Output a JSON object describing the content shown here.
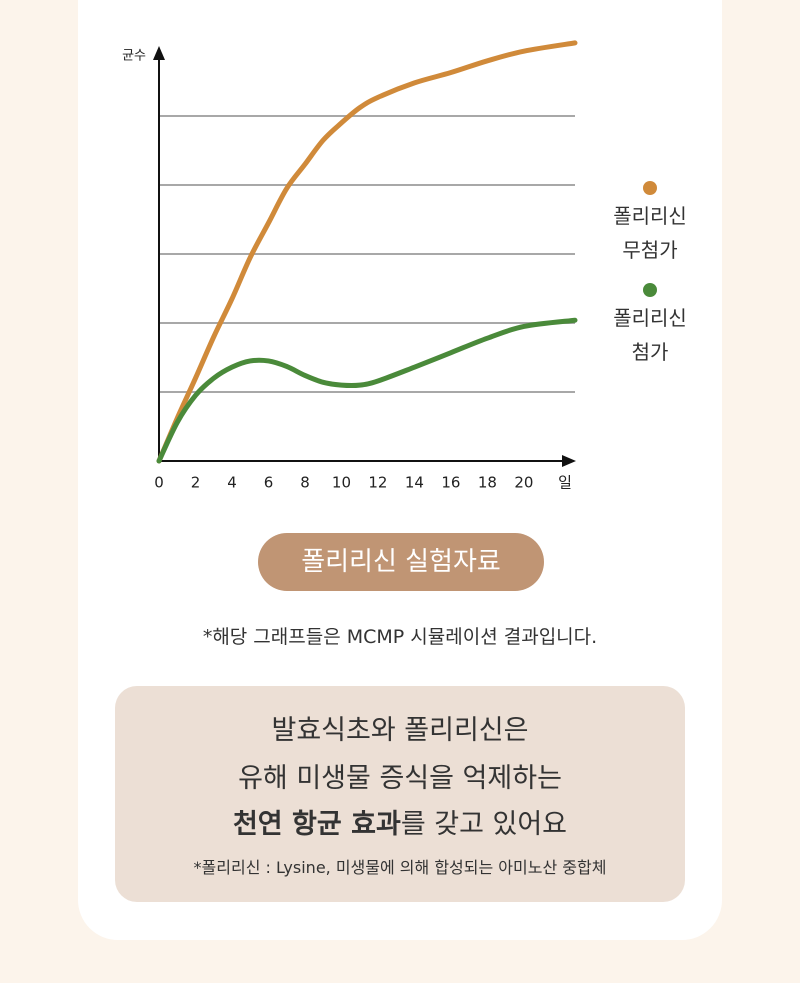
{
  "chart_data": {
    "type": "line",
    "ylabel": "균수",
    "xlabel": "일",
    "x": [
      0,
      1,
      2,
      3,
      4,
      5,
      6,
      7,
      8,
      9,
      10,
      11,
      12,
      14,
      16,
      18,
      20,
      22.8
    ],
    "xlim": [
      0,
      22.8
    ],
    "xticks": [
      0,
      2,
      4,
      6,
      8,
      10,
      12,
      14,
      16,
      18,
      20
    ],
    "ylim": [
      0,
      6.3
    ],
    "gridlines": [
      1,
      2,
      3,
      4,
      5
    ],
    "series": [
      {
        "name": "폴리리신\n무첨가",
        "color": "#d08a3a",
        "values": [
          0,
          0.62,
          1.2,
          1.8,
          2.35,
          2.95,
          3.45,
          3.95,
          4.3,
          4.65,
          4.9,
          5.12,
          5.27,
          5.48,
          5.63,
          5.8,
          5.94,
          6.06
        ]
      },
      {
        "name": "폴리리신\n첨가",
        "color": "#4a8a3a",
        "values": [
          0,
          0.56,
          0.95,
          1.2,
          1.36,
          1.45,
          1.45,
          1.37,
          1.24,
          1.14,
          1.1,
          1.1,
          1.16,
          1.36,
          1.57,
          1.78,
          1.95,
          2.04
        ]
      }
    ]
  },
  "button": "폴리리신 실험자료",
  "note": "*해당 그래프들은 MCMP 시뮬레이션 결과입니다.",
  "box": {
    "line1": "발효식초와 폴리리신은",
    "line2": "유해 미생물 증식을 억제하는",
    "line3_bold": "천연 항균 효과",
    "line3_rest": "를 갖고 있어요",
    "footnote": "*폴리리신 : Lysine, 미생물에 의해 합성되는 아미노산 중합체"
  }
}
